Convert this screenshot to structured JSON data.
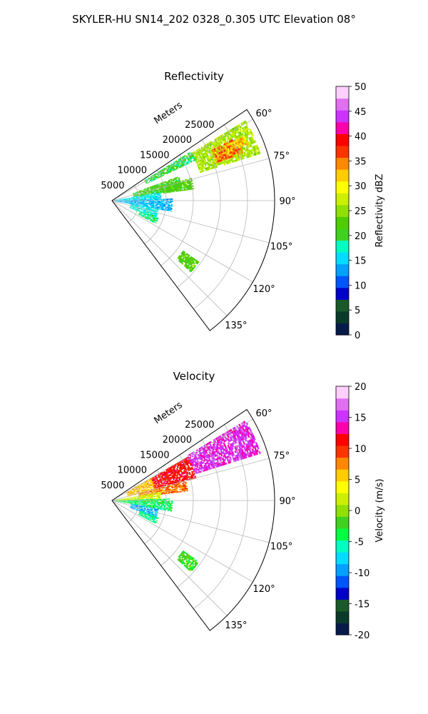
{
  "figure_title": "SKYLER-HU  SN14_202  0328_0.305 UTC Elevation 08°",
  "range_unit_label": "Meters",
  "range_ticks": [
    5000,
    10000,
    15000,
    20000,
    25000
  ],
  "azimuth_ticks": [
    60,
    75,
    90,
    105,
    120,
    135
  ],
  "azimuth_tick_labels": [
    "60°",
    "75°",
    "90°",
    "105°",
    "120°",
    "135°"
  ],
  "chart_data": [
    {
      "type": "heatmap",
      "projection": "polar-sector",
      "title": "Reflectivity",
      "colorbar_label": "Reflectivity dBZ",
      "colorbar_range": [
        0,
        50
      ],
      "colorbar_ticks": [
        0,
        5,
        10,
        15,
        20,
        25,
        30,
        35,
        40,
        45,
        50
      ],
      "azimuth_range_deg": [
        56,
        143
      ],
      "max_range_m": 30000,
      "grid": true,
      "colormap_stops": [
        "#081a4a",
        "#0a3a2a",
        "#1a5a2a",
        "#0000cc",
        "#0055ff",
        "#00a0ff",
        "#00ddff",
        "#00ffc0",
        "#40d020",
        "#50cc00",
        "#90e000",
        "#ccf000",
        "#ffff00",
        "#ffcc00",
        "#ff8800",
        "#ff3300",
        "#ff0000",
        "#ff00aa",
        "#cc33ff",
        "#e070f0",
        "#ffd0ff"
      ],
      "echo_regions": [
        {
          "az": [
            59,
            72
          ],
          "range_m": [
            17000,
            28500
          ],
          "value": 26
        },
        {
          "az": [
            63,
            70
          ],
          "range_m": [
            20500,
            25500
          ],
          "value": 35
        },
        {
          "az": [
            64,
            67
          ],
          "range_m": [
            23000,
            27000
          ],
          "value": 32
        },
        {
          "az": [
            58,
            64
          ],
          "range_m": [
            7000,
            17000
          ],
          "value": 20
        },
        {
          "az": [
            70,
            80
          ],
          "range_m": [
            4000,
            13000
          ],
          "value": 21
        },
        {
          "az": [
            74,
            82
          ],
          "range_m": [
            9000,
            15000
          ],
          "value": 22
        },
        {
          "az": [
            80,
            90
          ],
          "range_m": [
            500,
            9000
          ],
          "value": 16
        },
        {
          "az": [
            88,
            100
          ],
          "range_m": [
            500,
            11000
          ],
          "value": 14
        },
        {
          "az": [
            100,
            112
          ],
          "range_m": [
            3500,
            8500
          ],
          "value": 17
        },
        {
          "az": [
            110,
            118
          ],
          "range_m": [
            5500,
            9000
          ],
          "value": 19
        },
        {
          "az": [
            125,
            132
          ],
          "range_m": [
            16000,
            19500
          ],
          "value": 22
        }
      ]
    },
    {
      "type": "heatmap",
      "projection": "polar-sector",
      "title": "Velocity",
      "colorbar_label": "Velocity (m/s)",
      "colorbar_range": [
        -20,
        20
      ],
      "colorbar_ticks": [
        -20,
        -15,
        -10,
        -5,
        0,
        5,
        10,
        15,
        20
      ],
      "azimuth_range_deg": [
        56,
        143
      ],
      "max_range_m": 30000,
      "grid": true,
      "colormap_stops": [
        "#081a4a",
        "#0a3a2a",
        "#1a5a2a",
        "#0000cc",
        "#0055ff",
        "#00a0ff",
        "#00ddff",
        "#00ffc0",
        "#00ff40",
        "#40d020",
        "#90e000",
        "#ccf000",
        "#ffff00",
        "#ffcc00",
        "#ff8800",
        "#ff3300",
        "#ff0000",
        "#ff00aa",
        "#cc33ff",
        "#e070f0",
        "#ffd0ff"
      ],
      "echo_regions": [
        {
          "az": [
            59,
            72
          ],
          "range_m": [
            16000,
            28500
          ],
          "value": 15
        },
        {
          "az": [
            60,
            75
          ],
          "range_m": [
            8000,
            16000
          ],
          "value": 11
        },
        {
          "az": [
            75,
            83
          ],
          "range_m": [
            5000,
            14000
          ],
          "value": 8
        },
        {
          "az": [
            60,
            76
          ],
          "range_m": [
            3000,
            8000
          ],
          "value": 6
        },
        {
          "az": [
            80,
            90
          ],
          "range_m": [
            500,
            9000
          ],
          "value": 2
        },
        {
          "az": [
            88,
            100
          ],
          "range_m": [
            500,
            11000
          ],
          "value": -4
        },
        {
          "az": [
            100,
            112
          ],
          "range_m": [
            3500,
            8500
          ],
          "value": -9
        },
        {
          "az": [
            110,
            118
          ],
          "range_m": [
            5500,
            9000
          ],
          "value": -5
        },
        {
          "az": [
            125,
            132
          ],
          "range_m": [
            16000,
            19500
          ],
          "value": -2
        }
      ]
    }
  ]
}
